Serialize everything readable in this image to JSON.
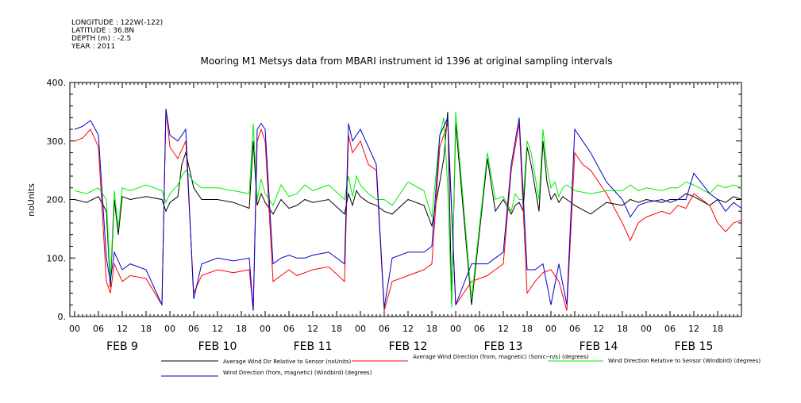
{
  "meta": {
    "longitude": "LONGITUDE : 122W(-122)",
    "latitude": "LATITUDE : 36.8N",
    "depth": "DEPTH (m) : -2.5",
    "year": "YEAR : 2011"
  },
  "chart_data": {
    "type": "line",
    "title": "Mooring M1 Metsys data from MBARI instrument id 1396 at original sampling intervals",
    "ylabel": "noUnits",
    "xlabel": "",
    "ylim": [
      0,
      400
    ],
    "yticks": [
      "0.",
      "100.",
      "200.",
      "300.",
      "400."
    ],
    "xlim": [
      0,
      168
    ],
    "x_hour_ticks": [
      "00",
      "06",
      "12",
      "18"
    ],
    "day_labels": [
      "FEB  9",
      "FEB 10",
      "FEB 11",
      "FEB 12",
      "FEB 13",
      "FEB 14",
      "FEB 15"
    ],
    "x_unit": "hours since FEB 9 00:00",
    "grid": false,
    "legend_position": "bottom",
    "series": [
      {
        "name": "Average Wind Dir Relative to Sensor (noUnits)",
        "color": "#000000",
        "x": [
          0,
          3,
          6,
          8,
          9,
          10,
          11,
          12,
          14,
          18,
          22,
          23,
          24,
          26,
          27,
          28,
          30,
          32,
          36,
          40,
          44,
          45,
          46,
          47,
          48,
          50,
          52,
          54,
          56,
          58,
          60,
          64,
          68,
          69,
          70,
          71,
          72,
          74,
          76,
          78,
          80,
          84,
          88,
          90,
          92,
          93,
          94,
          95,
          96,
          100,
          104,
          106,
          108,
          110,
          111,
          112,
          113,
          114,
          115,
          116,
          117,
          118,
          119,
          120,
          121,
          122,
          123,
          124,
          126,
          130,
          134,
          138,
          140,
          142,
          144,
          148,
          150,
          152,
          154,
          156,
          160,
          162,
          164,
          166,
          168
        ],
        "y": [
          200,
          195,
          205,
          180,
          50,
          200,
          140,
          205,
          200,
          205,
          200,
          180,
          195,
          205,
          260,
          280,
          220,
          200,
          200,
          195,
          185,
          300,
          190,
          210,
          195,
          175,
          200,
          185,
          190,
          200,
          195,
          200,
          175,
          210,
          190,
          215,
          205,
          195,
          190,
          180,
          175,
          200,
          190,
          155,
          230,
          270,
          350,
          20,
          330,
          20,
          270,
          180,
          200,
          175,
          190,
          195,
          180,
          290,
          260,
          220,
          180,
          300,
          230,
          200,
          210,
          195,
          205,
          200,
          190,
          175,
          195,
          190,
          200,
          195,
          200,
          195,
          200,
          200,
          210,
          205,
          190,
          200,
          195,
          205,
          200
        ]
      },
      {
        "name": "Average Wind Direction (from, magnetic) (Sonic--n/s) (degrees)",
        "color": "#ff0000",
        "x": [
          0,
          2,
          4,
          6,
          8,
          9,
          10,
          11,
          12,
          14,
          18,
          22,
          23,
          24,
          26,
          28,
          30,
          32,
          36,
          40,
          44,
          45,
          46,
          47,
          48,
          50,
          52,
          54,
          56,
          58,
          60,
          64,
          68,
          69,
          70,
          72,
          74,
          76,
          78,
          80,
          84,
          88,
          90,
          92,
          94,
          96,
          100,
          104,
          106,
          108,
          110,
          112,
          114,
          116,
          118,
          120,
          122,
          124,
          126,
          128,
          130,
          134,
          138,
          140,
          142,
          144,
          148,
          150,
          152,
          154,
          156,
          160,
          162,
          164,
          166,
          168
        ],
        "y": [
          300,
          305,
          320,
          290,
          60,
          40,
          90,
          75,
          60,
          70,
          65,
          20,
          355,
          290,
          270,
          300,
          40,
          70,
          80,
          75,
          80,
          10,
          300,
          320,
          300,
          60,
          70,
          80,
          70,
          75,
          80,
          85,
          60,
          310,
          280,
          300,
          260,
          250,
          10,
          60,
          70,
          80,
          90,
          290,
          330,
          20,
          60,
          70,
          80,
          90,
          250,
          330,
          40,
          60,
          75,
          80,
          60,
          10,
          280,
          260,
          250,
          210,
          160,
          130,
          160,
          170,
          180,
          175,
          190,
          185,
          210,
          190,
          160,
          145,
          160,
          165
        ]
      },
      {
        "name": "Wind Direction Relative to Sensor (Windbird) (degrees)",
        "color": "#00ee00",
        "x": [
          0,
          3,
          6,
          8,
          9,
          10,
          11,
          12,
          14,
          18,
          22,
          23,
          24,
          26,
          27,
          28,
          30,
          32,
          36,
          40,
          44,
          45,
          46,
          47,
          48,
          50,
          52,
          54,
          56,
          58,
          60,
          64,
          68,
          69,
          70,
          71,
          72,
          74,
          76,
          78,
          80,
          84,
          88,
          90,
          92,
          93,
          94,
          95,
          96,
          100,
          104,
          106,
          108,
          110,
          111,
          112,
          113,
          114,
          115,
          116,
          117,
          118,
          119,
          120,
          121,
          122,
          123,
          124,
          126,
          130,
          134,
          138,
          140,
          142,
          144,
          148,
          150,
          152,
          154,
          156,
          160,
          162,
          164,
          166,
          168
        ],
        "y": [
          215,
          210,
          220,
          200,
          60,
          215,
          150,
          220,
          215,
          225,
          215,
          195,
          210,
          225,
          240,
          250,
          230,
          220,
          220,
          215,
          210,
          330,
          200,
          235,
          210,
          190,
          225,
          205,
          210,
          225,
          215,
          225,
          200,
          240,
          205,
          240,
          225,
          210,
          200,
          200,
          190,
          230,
          215,
          170,
          310,
          340,
          220,
          15,
          350,
          30,
          280,
          200,
          205,
          180,
          210,
          200,
          200,
          300,
          280,
          240,
          200,
          320,
          255,
          220,
          230,
          205,
          220,
          225,
          215,
          210,
          215,
          215,
          225,
          215,
          220,
          215,
          220,
          220,
          230,
          225,
          210,
          225,
          220,
          225,
          220
        ]
      },
      {
        "name": "Wind Direction (from, magnetic) (Windbird) (degrees)",
        "color": "#0000cc",
        "x": [
          0,
          2,
          4,
          6,
          8,
          9,
          10,
          11,
          12,
          14,
          18,
          22,
          23,
          24,
          26,
          28,
          30,
          32,
          36,
          40,
          44,
          45,
          46,
          47,
          48,
          50,
          52,
          54,
          56,
          58,
          60,
          64,
          68,
          69,
          70,
          72,
          74,
          76,
          78,
          80,
          84,
          88,
          90,
          92,
          94,
          96,
          100,
          104,
          106,
          108,
          110,
          112,
          114,
          116,
          118,
          120,
          122,
          124,
          126,
          128,
          130,
          134,
          138,
          140,
          142,
          144,
          148,
          150,
          152,
          154,
          156,
          160,
          162,
          164,
          166,
          168
        ],
        "y": [
          320,
          325,
          335,
          310,
          100,
          60,
          110,
          95,
          80,
          90,
          80,
          20,
          355,
          310,
          300,
          320,
          30,
          90,
          100,
          95,
          100,
          10,
          320,
          330,
          320,
          90,
          100,
          105,
          100,
          100,
          105,
          110,
          90,
          330,
          300,
          320,
          290,
          260,
          15,
          100,
          110,
          110,
          120,
          310,
          340,
          20,
          90,
          90,
          100,
          110,
          260,
          340,
          80,
          80,
          90,
          20,
          90,
          20,
          320,
          300,
          280,
          230,
          200,
          170,
          190,
          195,
          200,
          195,
          200,
          200,
          245,
          210,
          200,
          180,
          195,
          185
        ]
      }
    ]
  }
}
